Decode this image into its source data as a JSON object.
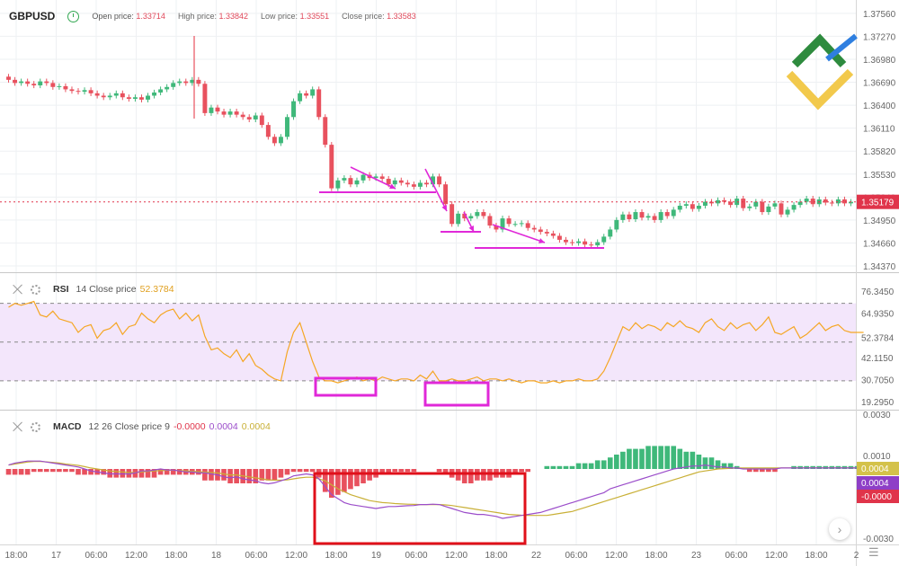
{
  "header": {
    "symbol": "GBPUSD",
    "open_label": "Open price:",
    "open": "1.33714",
    "high_label": "High price:",
    "high": "1.33842",
    "low_label": "Low price:",
    "low": "1.33551",
    "close_label": "Close price:",
    "close": "1.33583"
  },
  "rsi": {
    "name": "RSI",
    "params": "14 Close price",
    "value": "52.3784"
  },
  "macd": {
    "name": "MACD",
    "params": "12 26 Close price 9",
    "v1": "-0.0000",
    "v2": "0.0004",
    "v3": "0.0004"
  },
  "colors": {
    "up": "#3fb87a",
    "down": "#e8515e",
    "rsi_line": "#f5a623",
    "rsi_band": "#f3e6fb",
    "macd_line": "#9b4dca",
    "signal_line": "#c9b037",
    "annotation_magenta": "#e028d8",
    "annotation_red": "#e0101a",
    "price_badge": "#e0344a"
  },
  "chart_data": [
    {
      "type": "candlestick",
      "title": "GBPUSD",
      "yaxis_ticks": [
        "1.37560",
        "1.37270",
        "1.36980",
        "1.36690",
        "1.36400",
        "1.36110",
        "1.35820",
        "1.35530",
        "1.35240",
        "1.34950",
        "1.34660",
        "1.34370"
      ],
      "ylim": [
        1.3437,
        1.3766
      ],
      "last_price": "1.35179",
      "closes": [
        1.3672,
        1.3668,
        1.367,
        1.3667,
        1.3665,
        1.367,
        1.3668,
        1.3663,
        1.3664,
        1.366,
        1.3658,
        1.3657,
        1.3659,
        1.3655,
        1.3652,
        1.365,
        1.3652,
        1.3655,
        1.365,
        1.3648,
        1.365,
        1.3647,
        1.3652,
        1.3656,
        1.366,
        1.3663,
        1.3668,
        1.367,
        1.3668,
        1.3672,
        1.3667,
        1.363,
        1.3637,
        1.3632,
        1.3628,
        1.3632,
        1.3628,
        1.3625,
        1.3622,
        1.3627,
        1.3615,
        1.36,
        1.3592,
        1.36,
        1.3625,
        1.3645,
        1.3655,
        1.3652,
        1.366,
        1.3625,
        1.359,
        1.3535,
        1.3545,
        1.3548,
        1.354,
        1.3545,
        1.3552,
        1.3548,
        1.355,
        1.3547,
        1.354,
        1.3545,
        1.3542,
        1.354,
        1.3537,
        1.3542,
        1.354,
        1.355,
        1.354,
        1.3515,
        1.349,
        1.3503,
        1.3497,
        1.35,
        1.3505,
        1.35,
        1.3488,
        1.3483,
        1.3497,
        1.349,
        1.349,
        1.3491,
        1.3485,
        1.3483,
        1.348,
        1.3478,
        1.3475,
        1.347,
        1.3467,
        1.3466,
        1.3468,
        1.3464,
        1.3463,
        1.3467,
        1.3474,
        1.3483,
        1.3495,
        1.3502,
        1.3496,
        1.3505,
        1.3498,
        1.35,
        1.3495,
        1.3505,
        1.35,
        1.3508,
        1.3513,
        1.3515,
        1.3509,
        1.3513,
        1.3518,
        1.3516,
        1.352,
        1.3518,
        1.3514,
        1.3522,
        1.351,
        1.3512,
        1.3518,
        1.3505,
        1.3512,
        1.3516,
        1.3502,
        1.3508,
        1.3514,
        1.3518,
        1.3522,
        1.3515,
        1.3521,
        1.3517,
        1.3516,
        1.3521,
        1.3516,
        1.3518
      ]
    },
    {
      "type": "line",
      "title": "RSI",
      "yaxis_ticks": [
        "76.3450",
        "64.9350",
        "52.3784",
        "42.1150",
        "30.7050",
        "19.2950"
      ],
      "ylim": [
        19.295,
        76.345
      ],
      "levels": [
        70,
        30
      ],
      "values": [
        68,
        70,
        69,
        70,
        71,
        64,
        63,
        66,
        62,
        61,
        60,
        55,
        58,
        59,
        52,
        56,
        57,
        60,
        54,
        58,
        59,
        65,
        62,
        60,
        64,
        66,
        67,
        62,
        65,
        61,
        64,
        53,
        46,
        47,
        44,
        42,
        46,
        40,
        44,
        38,
        36,
        33,
        31,
        30,
        45,
        55,
        60,
        50,
        40,
        32,
        30,
        30,
        29,
        30,
        31,
        32,
        30,
        31,
        30,
        32,
        31,
        30,
        31,
        31,
        30,
        33,
        31,
        35,
        30,
        30,
        31,
        30,
        30,
        31,
        32,
        30,
        31,
        31,
        30,
        31,
        30,
        29,
        30,
        30,
        29,
        29,
        30,
        29,
        30,
        30,
        31,
        30,
        30,
        31,
        35,
        42,
        50,
        58,
        56,
        60,
        57,
        59,
        58,
        56,
        60,
        58,
        61,
        58,
        57,
        55,
        60,
        62,
        58,
        56,
        60,
        57,
        59,
        60,
        56,
        59,
        63,
        55,
        54,
        56,
        58,
        52,
        54,
        57,
        60,
        56,
        58,
        59,
        56,
        55,
        55,
        55
      ]
    },
    {
      "type": "bar+line",
      "title": "MACD",
      "yaxis_ticks": [
        "0.0030",
        "0.0010",
        "0.0004",
        "-0.0000",
        "-0.0030"
      ],
      "ylim": [
        -0.0031,
        0.0031
      ],
      "histogram": [
        -2,
        -2,
        -2,
        -2,
        -1,
        -1,
        -1,
        -1,
        -1,
        -1,
        -1,
        -2,
        -2,
        -2,
        -2,
        -2,
        -3,
        -3,
        -3,
        -3,
        -3,
        -3,
        -3,
        -3,
        -2,
        -2,
        -2,
        -2,
        -2,
        -2,
        -2,
        -4,
        -4,
        -4,
        -4,
        -5,
        -5,
        -5,
        -5,
        -5,
        -4,
        -4,
        -4,
        -3,
        -2,
        -1,
        -1,
        -1,
        -1,
        -3,
        -8,
        -10,
        -9,
        -8,
        -7,
        -6,
        -5,
        -4,
        -3,
        -2,
        -2,
        -1,
        -1,
        -1,
        -1,
        0,
        0,
        0,
        -1,
        -2,
        -3,
        -4,
        -5,
        -5,
        -4,
        -4,
        -4,
        -3,
        -3,
        -3,
        -2,
        -1,
        -1,
        0,
        0,
        1,
        1,
        1,
        1,
        1,
        2,
        2,
        2,
        3,
        3,
        4,
        5,
        6,
        7,
        7,
        7,
        8,
        8,
        8,
        8,
        8,
        7,
        6,
        6,
        5,
        4,
        4,
        3,
        2,
        2,
        1,
        0,
        -1,
        -1,
        -1,
        -1,
        -1,
        0,
        0,
        1,
        1,
        1,
        1,
        1,
        1,
        1,
        1,
        1,
        1,
        1,
        1
      ],
      "macd_line": [
        0.2,
        0.3,
        0.35,
        0.4,
        0.4,
        0.4,
        0.35,
        0.3,
        0.25,
        0.2,
        0.15,
        0.1,
        0.0,
        -0.1,
        -0.15,
        -0.2,
        -0.25,
        -0.25,
        -0.25,
        -0.25,
        -0.2,
        -0.1,
        -0.1,
        -0.05,
        0,
        -0.05,
        -0.05,
        -0.1,
        -0.15,
        -0.15,
        -0.2,
        -0.2,
        -0.25,
        -0.3,
        -0.4,
        -0.45,
        -0.4,
        -0.5,
        -0.55,
        -0.6,
        -0.7,
        -0.75,
        -0.7,
        -0.6,
        -0.5,
        -0.35,
        -0.3,
        -0.25,
        -0.3,
        -0.5,
        -0.9,
        -1.3,
        -1.5,
        -1.7,
        -1.8,
        -1.85,
        -1.9,
        -1.95,
        -2.0,
        -1.95,
        -1.9,
        -1.9,
        -1.88,
        -1.86,
        -1.85,
        -1.8,
        -1.8,
        -1.78,
        -1.8,
        -1.9,
        -2.0,
        -2.1,
        -2.2,
        -2.25,
        -2.3,
        -2.3,
        -2.35,
        -2.4,
        -2.5,
        -2.45,
        -2.4,
        -2.35,
        -2.3,
        -2.25,
        -2.2,
        -2.1,
        -2.0,
        -1.9,
        -1.8,
        -1.7,
        -1.6,
        -1.5,
        -1.4,
        -1.3,
        -1.2,
        -1.0,
        -0.9,
        -0.8,
        -0.7,
        -0.6,
        -0.5,
        -0.4,
        -0.3,
        -0.2,
        -0.1,
        0,
        0.05,
        0.1,
        0.15,
        0.15,
        0.2,
        0.15,
        0.1,
        0.1,
        0.05,
        0.05,
        0,
        0,
        0,
        0,
        0,
        0,
        0.05,
        0.05,
        0.05,
        0.05,
        0.05,
        0.05,
        0.05,
        0.05,
        0.05,
        0.05,
        0.05,
        0.05,
        0.05,
        0.05
      ],
      "signal_line": [
        0.2,
        0.25,
        0.3,
        0.35,
        0.38,
        0.38,
        0.36,
        0.33,
        0.3,
        0.25,
        0.22,
        0.18,
        0.12,
        0.05,
        0,
        -0.05,
        -0.1,
        -0.13,
        -0.15,
        -0.18,
        -0.18,
        -0.15,
        -0.12,
        -0.1,
        -0.08,
        -0.07,
        -0.06,
        -0.08,
        -0.1,
        -0.12,
        -0.14,
        -0.16,
        -0.18,
        -0.2,
        -0.25,
        -0.3,
        -0.3,
        -0.35,
        -0.4,
        -0.45,
        -0.5,
        -0.55,
        -0.57,
        -0.57,
        -0.55,
        -0.5,
        -0.45,
        -0.42,
        -0.42,
        -0.5,
        -0.6,
        -0.8,
        -1.0,
        -1.15,
        -1.3,
        -1.4,
        -1.5,
        -1.6,
        -1.65,
        -1.7,
        -1.72,
        -1.75,
        -1.77,
        -1.78,
        -1.79,
        -1.8,
        -1.8,
        -1.8,
        -1.8,
        -1.82,
        -1.85,
        -1.9,
        -1.95,
        -2.0,
        -2.05,
        -2.1,
        -2.15,
        -2.2,
        -2.25,
        -2.3,
        -2.32,
        -2.34,
        -2.35,
        -2.35,
        -2.35,
        -2.35,
        -2.3,
        -2.25,
        -2.2,
        -2.15,
        -2.05,
        -1.95,
        -1.85,
        -1.75,
        -1.65,
        -1.55,
        -1.45,
        -1.35,
        -1.25,
        -1.15,
        -1.05,
        -0.95,
        -0.85,
        -0.75,
        -0.65,
        -0.55,
        -0.45,
        -0.35,
        -0.25,
        -0.15,
        -0.1,
        -0.05,
        0,
        0.02,
        0.03,
        0.05,
        0.05,
        0.05,
        0.05,
        0.05,
        0.05,
        0.05,
        0.05,
        0.05,
        0.05,
        0.05,
        0.05,
        0.05,
        0.05,
        0.05,
        0.05,
        0.05,
        0.05,
        0.05,
        0.05,
        0.05
      ]
    }
  ],
  "xaxis": {
    "labels": [
      "18:00",
      "17",
      "06:00",
      "12:00",
      "18:00",
      "18",
      "06:00",
      "12:00",
      "18:00",
      "19",
      "06:00",
      "12:00",
      "18:00",
      "22",
      "06:00",
      "12:00",
      "18:00",
      "23",
      "06:00",
      "12:00",
      "18:00",
      "2"
    ]
  }
}
